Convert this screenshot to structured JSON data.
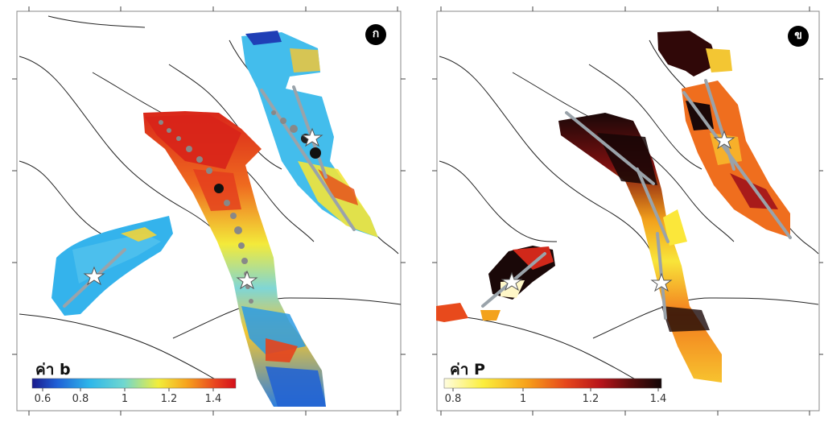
{
  "panels": [
    {
      "badge": "ก",
      "colorbar_title": "ค่า b",
      "colorbar_ticks": [
        "0.6",
        "0.8",
        "1",
        "1.2",
        "1.4"
      ],
      "colorbar_range": [
        0.6,
        1.5
      ],
      "colormap": [
        "#1a1a8c",
        "#1f5fd6",
        "#2db6ea",
        "#6fd7d0",
        "#f2ee3a",
        "#f7a21c",
        "#e8441f",
        "#d4101c"
      ]
    },
    {
      "badge": "ข",
      "colorbar_title": "ค่า P",
      "colorbar_ticks": [
        "0.8",
        "1",
        "1.2",
        "1.4"
      ],
      "colorbar_range": [
        0.78,
        1.42
      ],
      "colormap": [
        "#fffde0",
        "#fbee3c",
        "#f7a11a",
        "#e6461c",
        "#b7141a",
        "#5a0c0c",
        "#120606"
      ]
    }
  ]
}
